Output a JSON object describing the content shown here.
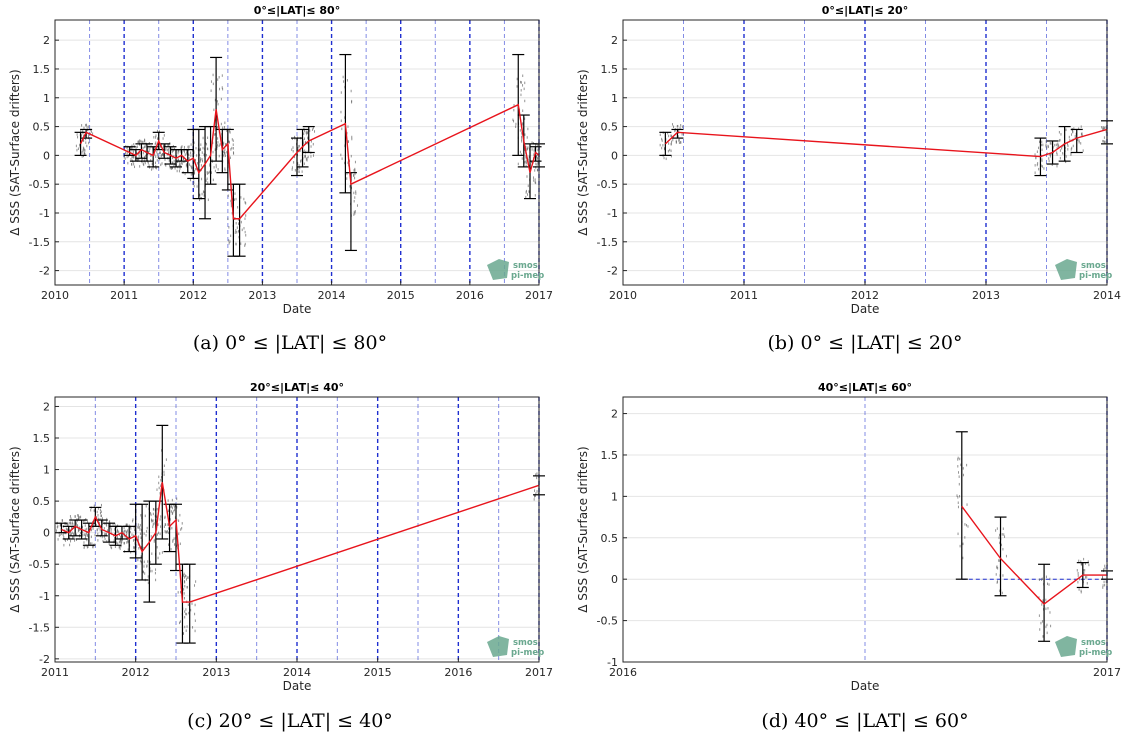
{
  "chart_data": [
    {
      "type": "line",
      "title": "0°≤|LAT|≤ 80°",
      "caption": "(a) 0° ≤ |LAT| ≤ 80°",
      "xlabel": "Date",
      "ylabel": "Δ SSS (SAT-Surface drifters)",
      "xlim": [
        2010,
        2017
      ],
      "ylim": [
        -2.25,
        2.35
      ],
      "xticks": [
        "2010",
        "2011",
        "2012",
        "2013",
        "2014",
        "2015",
        "2016",
        "2017"
      ],
      "yticks": [
        "-2",
        "-1.5",
        "-1",
        "-0.5",
        "0",
        "0.5",
        "1",
        "1.5",
        "2"
      ],
      "grid": true,
      "legend": "none",
      "series": [
        {
          "x": [
            2010.37,
            2010.45,
            2011.08,
            2011.17,
            2011.25,
            2011.33,
            2011.42,
            2011.5,
            2011.58,
            2011.67,
            2011.75,
            2011.83,
            2011.92,
            2012.0,
            2012.08,
            2012.17,
            2012.25,
            2012.33,
            2012.42,
            2012.5,
            2012.58,
            2012.67,
            2013.5,
            2013.58,
            2013.67,
            2014.2,
            2014.28,
            2016.7,
            2016.78,
            2016.87,
            2016.95,
            2017.0
          ],
          "y": [
            0.2,
            0.4,
            0.05,
            0.0,
            0.1,
            0.05,
            0.0,
            0.25,
            0.05,
            0.0,
            -0.05,
            0.0,
            -0.1,
            -0.05,
            -0.3,
            -0.15,
            0.0,
            0.8,
            0.1,
            0.2,
            -1.1,
            -1.1,
            0.05,
            0.15,
            0.25,
            0.55,
            -0.5,
            0.88,
            0.25,
            -0.3,
            0.05,
            0.0
          ],
          "lower": [
            0.0,
            0.3,
            0.0,
            -0.1,
            -0.05,
            -0.1,
            -0.2,
            0.1,
            -0.05,
            -0.15,
            -0.2,
            -0.1,
            -0.3,
            -0.4,
            -0.75,
            -1.1,
            -0.5,
            -0.1,
            -0.3,
            -0.6,
            -1.75,
            -1.75,
            -0.35,
            -0.2,
            0.05,
            -0.65,
            -1.65,
            0.0,
            -0.2,
            -0.75,
            -0.1,
            -0.2
          ],
          "upper": [
            0.4,
            0.45,
            0.15,
            0.1,
            0.2,
            0.2,
            0.15,
            0.4,
            0.2,
            0.15,
            0.1,
            0.1,
            0.1,
            0.45,
            0.45,
            0.5,
            0.5,
            1.7,
            0.45,
            0.45,
            -0.5,
            -0.5,
            0.3,
            0.45,
            0.5,
            1.75,
            -0.3,
            1.75,
            0.7,
            0.2,
            0.15,
            0.2
          ]
        }
      ],
      "blue_lines": [
        2010.5,
        2011.0,
        2011.5,
        2012.0,
        2012.5,
        2013.0,
        2013.5,
        2014.0,
        2014.5,
        2015.0,
        2015.5,
        2016.0,
        2016.5,
        2017.0
      ],
      "has_zero_line": false
    },
    {
      "type": "line",
      "title": "0°≤|LAT|≤ 20°",
      "caption": "(b) 0° ≤ |LAT| ≤ 20°",
      "xlabel": "Date",
      "ylabel": "Δ SSS (SAT-Surface drifters)",
      "xlim": [
        2010,
        2014
      ],
      "ylim": [
        -2.25,
        2.35
      ],
      "xticks": [
        "2010",
        "2011",
        "2012",
        "2013",
        "2014"
      ],
      "yticks": [
        "-2",
        "-1.5",
        "-1",
        "-0.5",
        "0",
        "0.5",
        "1",
        "1.5",
        "2"
      ],
      "grid": true,
      "legend": "none",
      "series": [
        {
          "x": [
            2010.35,
            2010.45,
            2013.45,
            2013.55,
            2013.65,
            2013.75,
            2014.0
          ],
          "y": [
            0.2,
            0.4,
            -0.02,
            0.05,
            0.2,
            0.3,
            0.45
          ],
          "lower": [
            0.0,
            0.3,
            -0.35,
            -0.15,
            -0.1,
            0.05,
            0.2
          ],
          "upper": [
            0.4,
            0.45,
            0.3,
            0.25,
            0.5,
            0.45,
            0.6
          ]
        }
      ],
      "blue_lines": [
        2010.5,
        2011.0,
        2011.5,
        2012.0,
        2012.5,
        2013.0,
        2013.5,
        2014.0
      ],
      "has_zero_line": false
    },
    {
      "type": "line",
      "title": "20°≤|LAT|≤ 40°",
      "caption": "(c) 20° ≤ |LAT| ≤ 40°",
      "xlabel": "Date",
      "ylabel": "Δ SSS (SAT-Surface drifters)",
      "xlim": [
        2011,
        2017
      ],
      "ylim": [
        -2.05,
        2.15
      ],
      "xticks": [
        "2011",
        "2012",
        "2013",
        "2014",
        "2015",
        "2016",
        "2017"
      ],
      "yticks": [
        "-2",
        "-1.5",
        "-1",
        "-0.5",
        "0",
        "0.5",
        "1",
        "1.5",
        "2"
      ],
      "grid": true,
      "legend": "none",
      "series": [
        {
          "x": [
            2011.08,
            2011.17,
            2011.25,
            2011.33,
            2011.42,
            2011.5,
            2011.58,
            2011.67,
            2011.75,
            2011.83,
            2011.92,
            2012.0,
            2012.08,
            2012.17,
            2012.25,
            2012.33,
            2012.42,
            2012.5,
            2012.58,
            2012.67,
            2017.0
          ],
          "y": [
            0.05,
            0.0,
            0.1,
            0.05,
            0.0,
            0.25,
            0.05,
            0.0,
            -0.05,
            0.0,
            -0.1,
            -0.05,
            -0.3,
            -0.15,
            0.0,
            0.8,
            0.1,
            0.2,
            -1.1,
            -1.1,
            0.75
          ],
          "lower": [
            0.0,
            -0.1,
            -0.05,
            -0.1,
            -0.2,
            0.1,
            -0.05,
            -0.15,
            -0.2,
            -0.1,
            -0.3,
            -0.4,
            -0.75,
            -1.1,
            -0.5,
            -0.1,
            -0.3,
            -0.6,
            -1.75,
            -1.75,
            0.6
          ],
          "upper": [
            0.15,
            0.1,
            0.2,
            0.2,
            0.15,
            0.4,
            0.2,
            0.15,
            0.1,
            0.1,
            0.1,
            0.45,
            0.45,
            0.5,
            0.5,
            1.7,
            0.45,
            0.45,
            -0.5,
            -0.5,
            0.9
          ]
        }
      ],
      "blue_lines": [
        2011.5,
        2012.0,
        2012.5,
        2013.0,
        2013.5,
        2014.0,
        2014.5,
        2015.0,
        2015.5,
        2016.0,
        2016.5,
        2017.0
      ],
      "has_zero_line": false
    },
    {
      "type": "line",
      "title": "40°≤|LAT|≤ 60°",
      "caption": "(d) 40° ≤ |LAT| ≤ 60°",
      "xlabel": "Date",
      "ylabel": "Δ SSS (SAT-Surface drifters)",
      "xlim": [
        2016,
        2017
      ],
      "ylim": [
        -1,
        2.2
      ],
      "xticks": [
        "2016",
        "2017"
      ],
      "yticks": [
        "-1",
        "-0.5",
        "0",
        "0.5",
        "1",
        "1.5",
        "2"
      ],
      "grid": true,
      "legend": "none",
      "series": [
        {
          "x": [
            2016.7,
            2016.78,
            2016.87,
            2016.95,
            2017.0
          ],
          "y": [
            0.88,
            0.25,
            -0.3,
            0.05,
            0.05
          ],
          "lower": [
            0.0,
            -0.2,
            -0.75,
            -0.1,
            0.0
          ],
          "upper": [
            1.78,
            0.75,
            0.18,
            0.2,
            0.1
          ]
        }
      ],
      "blue_lines": [
        2016.5,
        2017.0
      ],
      "has_zero_line": true
    }
  ],
  "logo": {
    "line1": "smos",
    "line2": "pi-mep",
    "color": "#6aa88f"
  },
  "colors": {
    "series": "#e8141c",
    "errorbar": "#000000",
    "vline": "#1f2fd0",
    "grid": "#e4e4e4"
  }
}
